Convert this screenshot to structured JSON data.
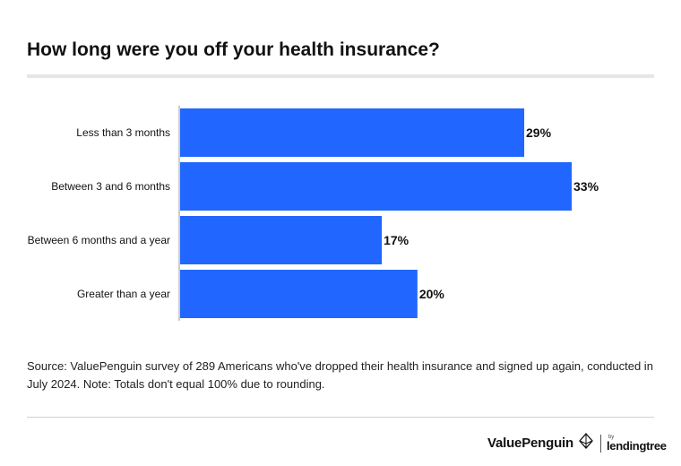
{
  "title": "How long were you off your health insurance?",
  "chart_data": {
    "type": "bar",
    "orientation": "horizontal",
    "categories": [
      "Less than 3 months",
      "Between 3 and 6 months",
      "Between 6 months and a year",
      "Greater than a year"
    ],
    "values": [
      29,
      33,
      17,
      20
    ],
    "value_labels": [
      "29%",
      "33%",
      "17%",
      "20%"
    ],
    "xlim": [
      0,
      33
    ],
    "grid": false,
    "legend": "none",
    "bar_color": "#2167ff"
  },
  "source": "Source: ValuePenguin survey of 289 Americans who've dropped their health insurance and signed up again, conducted in July 2024. Note: Totals don't equal 100% due to rounding.",
  "footer": {
    "brand": "ValuePenguin",
    "partner_by": "by",
    "partner": "lendingtree"
  }
}
